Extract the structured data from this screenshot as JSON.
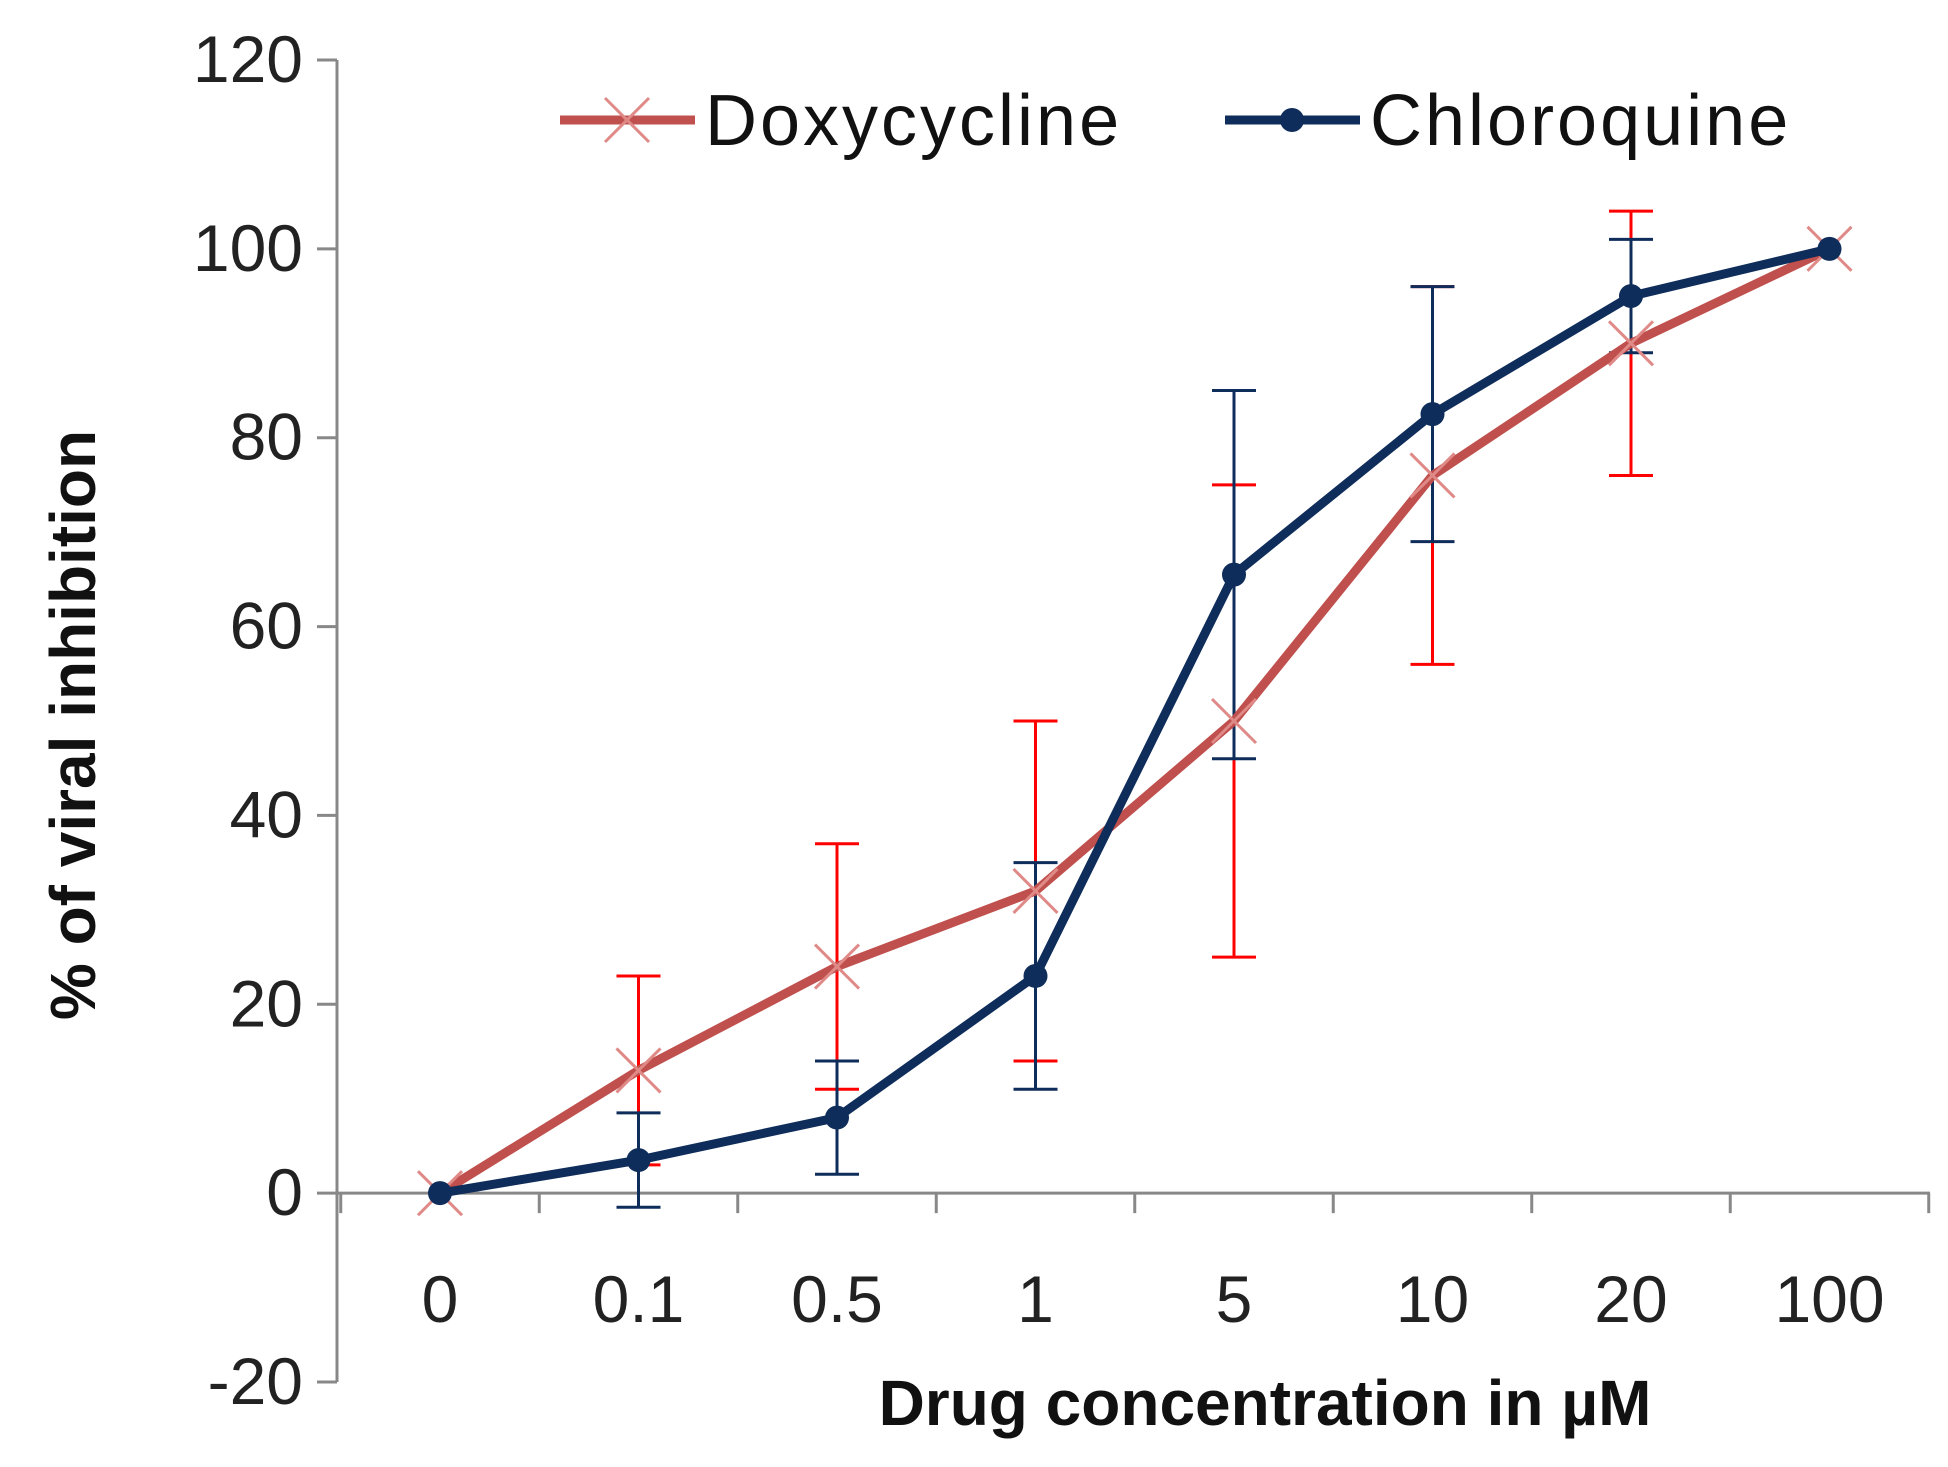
{
  "chart_data": {
    "type": "line",
    "title": "",
    "xlabel": "Drug concentration in µM",
    "ylabel": "% of viral inhibition",
    "categories": [
      "0",
      "0.1",
      "0.5",
      "1",
      "5",
      "10",
      "20",
      "100"
    ],
    "ylim": [
      -20,
      120
    ],
    "yticks": [
      -20,
      0,
      20,
      40,
      60,
      80,
      100,
      120
    ],
    "grid": false,
    "legend_position": "top",
    "series": [
      {
        "name": "Doxycycline",
        "color": "#c0504d",
        "error_color": "#ff0000",
        "marker": "x",
        "values": [
          0,
          13,
          24,
          32,
          50,
          76,
          90,
          100
        ],
        "errors": [
          0,
          10,
          13,
          18,
          25,
          20,
          14,
          0
        ]
      },
      {
        "name": "Chloroquine",
        "color": "#0f2d5a",
        "error_color": "#0f2d5a",
        "marker": "circle",
        "values": [
          0,
          3.5,
          8,
          23,
          65.5,
          82.5,
          95,
          100
        ],
        "errors": [
          0,
          5,
          6,
          12,
          19.5,
          13.5,
          6,
          0
        ]
      }
    ]
  }
}
